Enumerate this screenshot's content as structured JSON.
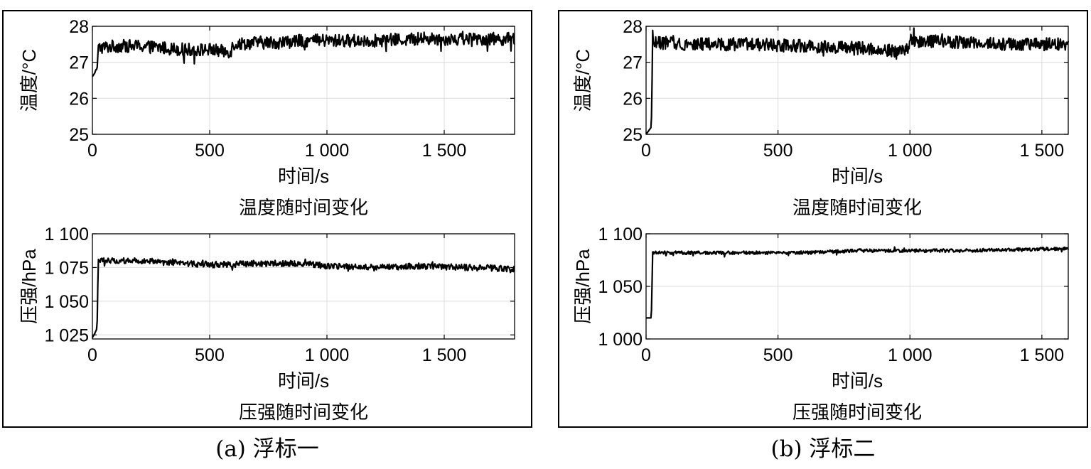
{
  "figures": [
    {
      "caption": "(a) 浮标一",
      "charts": [
        {
          "type": "line",
          "title": "温度随时间变化",
          "xlabel": "时间/s",
          "ylabel": "温度/°C",
          "xlim": [
            0,
            1800
          ],
          "ylim": [
            25,
            28
          ],
          "xticks": [
            0,
            500,
            1000,
            1500
          ],
          "xtick_labels": [
            "0",
            "500",
            "1 000",
            "1 500"
          ],
          "yticks": [
            25,
            26,
            27,
            28
          ],
          "ytick_labels": [
            "25",
            "26",
            "27",
            "28"
          ],
          "grid": true,
          "series": [
            {
              "color": "#000000",
              "points": [
                [
                  0,
                  26.6
                ],
                [
                  10,
                  26.7
                ],
                [
                  15,
                  26.8
                ],
                [
                  20,
                  26.8
                ],
                [
                  25,
                  27.4
                ],
                [
                  100,
                  27.45
                ],
                [
                  200,
                  27.45
                ],
                [
                  300,
                  27.4
                ],
                [
                  400,
                  27.35
                ],
                [
                  500,
                  27.35
                ],
                [
                  560,
                  27.3
                ],
                [
                  590,
                  27.3
                ],
                [
                  600,
                  27.5
                ],
                [
                  700,
                  27.55
                ],
                [
                  800,
                  27.55
                ],
                [
                  900,
                  27.6
                ],
                [
                  1000,
                  27.6
                ],
                [
                  1200,
                  27.6
                ],
                [
                  1400,
                  27.65
                ],
                [
                  1600,
                  27.65
                ],
                [
                  1800,
                  27.65
                ]
              ],
              "noise": 0.18
            }
          ]
        },
        {
          "type": "line",
          "title": "压强随时间变化",
          "xlabel": "时间/s",
          "ylabel": "压强/hPa",
          "xlim": [
            0,
            1800
          ],
          "ylim": [
            1022,
            1100
          ],
          "xticks": [
            0,
            500,
            1000,
            1500
          ],
          "xtick_labels": [
            "0",
            "500",
            "1 000",
            "1 500"
          ],
          "yticks": [
            1025,
            1050,
            1075,
            1100
          ],
          "ytick_labels": [
            "1 025",
            "1 050",
            "1 075",
            "1 100"
          ],
          "grid": true,
          "series": [
            {
              "color": "#000000",
              "points": [
                [
                  0,
                  1023
                ],
                [
                  10,
                  1026
                ],
                [
                  20,
                  1030
                ],
                [
                  25,
                  1080
                ],
                [
                  100,
                  1080
                ],
                [
                  200,
                  1080
                ],
                [
                  300,
                  1079
                ],
                [
                  400,
                  1078
                ],
                [
                  500,
                  1077
                ],
                [
                  700,
                  1078
                ],
                [
                  900,
                  1078
                ],
                [
                  1000,
                  1076
                ],
                [
                  1200,
                  1075
                ],
                [
                  1400,
                  1076
                ],
                [
                  1600,
                  1075
                ],
                [
                  1800,
                  1074
                ]
              ],
              "noise": 2.3
            }
          ]
        }
      ]
    },
    {
      "caption": "(b) 浮标二",
      "charts": [
        {
          "type": "line",
          "title": "温度随时间变化",
          "xlabel": "时间/s",
          "ylabel": "温度/°C",
          "xlim": [
            0,
            1600
          ],
          "ylim": [
            25,
            28
          ],
          "xticks": [
            0,
            500,
            1000,
            1500
          ],
          "xtick_labels": [
            "0",
            "500",
            "1 000",
            "1 500"
          ],
          "yticks": [
            25,
            26,
            27,
            28
          ],
          "ytick_labels": [
            "25",
            "26",
            "27",
            "28"
          ],
          "grid": true,
          "series": [
            {
              "color": "#000000",
              "points": [
                [
                  0,
                  25.0
                ],
                [
                  10,
                  25.1
                ],
                [
                  20,
                  25.2
                ],
                [
                  25,
                  27.55
                ],
                [
                  200,
                  27.5
                ],
                [
                  400,
                  27.5
                ],
                [
                  600,
                  27.45
                ],
                [
                  800,
                  27.4
                ],
                [
                  900,
                  27.35
                ],
                [
                  990,
                  27.3
                ],
                [
                  1000,
                  27.6
                ],
                [
                  1200,
                  27.55
                ],
                [
                  1400,
                  27.5
                ],
                [
                  1600,
                  27.5
                ]
              ],
              "noise": 0.18
            }
          ]
        },
        {
          "type": "line",
          "title": "压强随时间变化",
          "xlabel": "时间/s",
          "ylabel": "压强/hPa",
          "xlim": [
            0,
            1600
          ],
          "ylim": [
            1000,
            1100
          ],
          "xticks": [
            0,
            500,
            1000,
            1500
          ],
          "xtick_labels": [
            "0",
            "500",
            "1 000",
            "1 500"
          ],
          "yticks": [
            1000,
            1050,
            1100
          ],
          "ytick_labels": [
            "1 000",
            "1 050",
            "1 100"
          ],
          "grid": true,
          "series": [
            {
              "color": "#000000",
              "points": [
                [
                  0,
                  1020
                ],
                [
                  20,
                  1020
                ],
                [
                  25,
                  1082
                ],
                [
                  200,
                  1082
                ],
                [
                  400,
                  1082
                ],
                [
                  600,
                  1082
                ],
                [
                  800,
                  1084
                ],
                [
                  1000,
                  1084
                ],
                [
                  1200,
                  1084
                ],
                [
                  1400,
                  1085
                ],
                [
                  1600,
                  1086
                ]
              ],
              "noise": 1.6
            }
          ]
        }
      ]
    }
  ]
}
